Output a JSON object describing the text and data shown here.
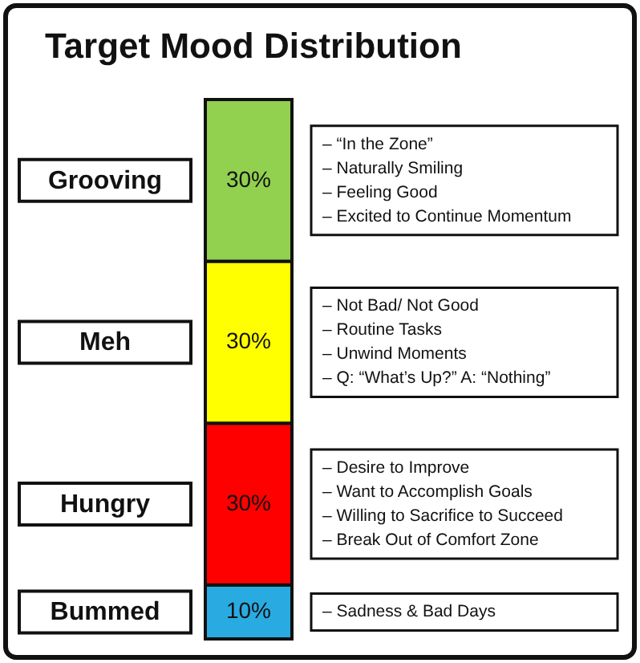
{
  "chart_data": {
    "type": "bar",
    "title": "Target Mood Distribution",
    "categories": [
      null
    ],
    "stacked": true,
    "legend": false,
    "annotations": [
      "–   “In the Zone”\n–   Naturally Smiling\n–   Feeling Good\n–   Excited to Continue Momentum",
      "–   Not Bad/ Not Good\n–   Routine Tasks\n–   Unwind Moments\n–   Q: “What’s Up?” A: “Nothing”",
      "–   Desire to Improve\n–   Want to Accomplish Goals\n–   Willing to Sacrifice to Succeed\n–   Break Out of Comfort Zone",
      "–   Sadness & Bad Days"
    ],
    "series": [
      {
        "name": "Bummed",
        "color": "#29abe2",
        "values": [
          10
        ],
        "value_labels": [
          "10%"
        ]
      },
      {
        "name": "Hungry",
        "color": "#ff0000",
        "values": [
          30
        ],
        "value_labels": [
          "30%"
        ]
      },
      {
        "name": "Meh",
        "color": "#ffff00",
        "values": [
          30
        ],
        "value_labels": [
          "30%"
        ]
      },
      {
        "name": "Grooving",
        "color": "#92d050",
        "values": [
          30
        ],
        "value_labels": [
          "30%"
        ]
      }
    ]
  }
}
